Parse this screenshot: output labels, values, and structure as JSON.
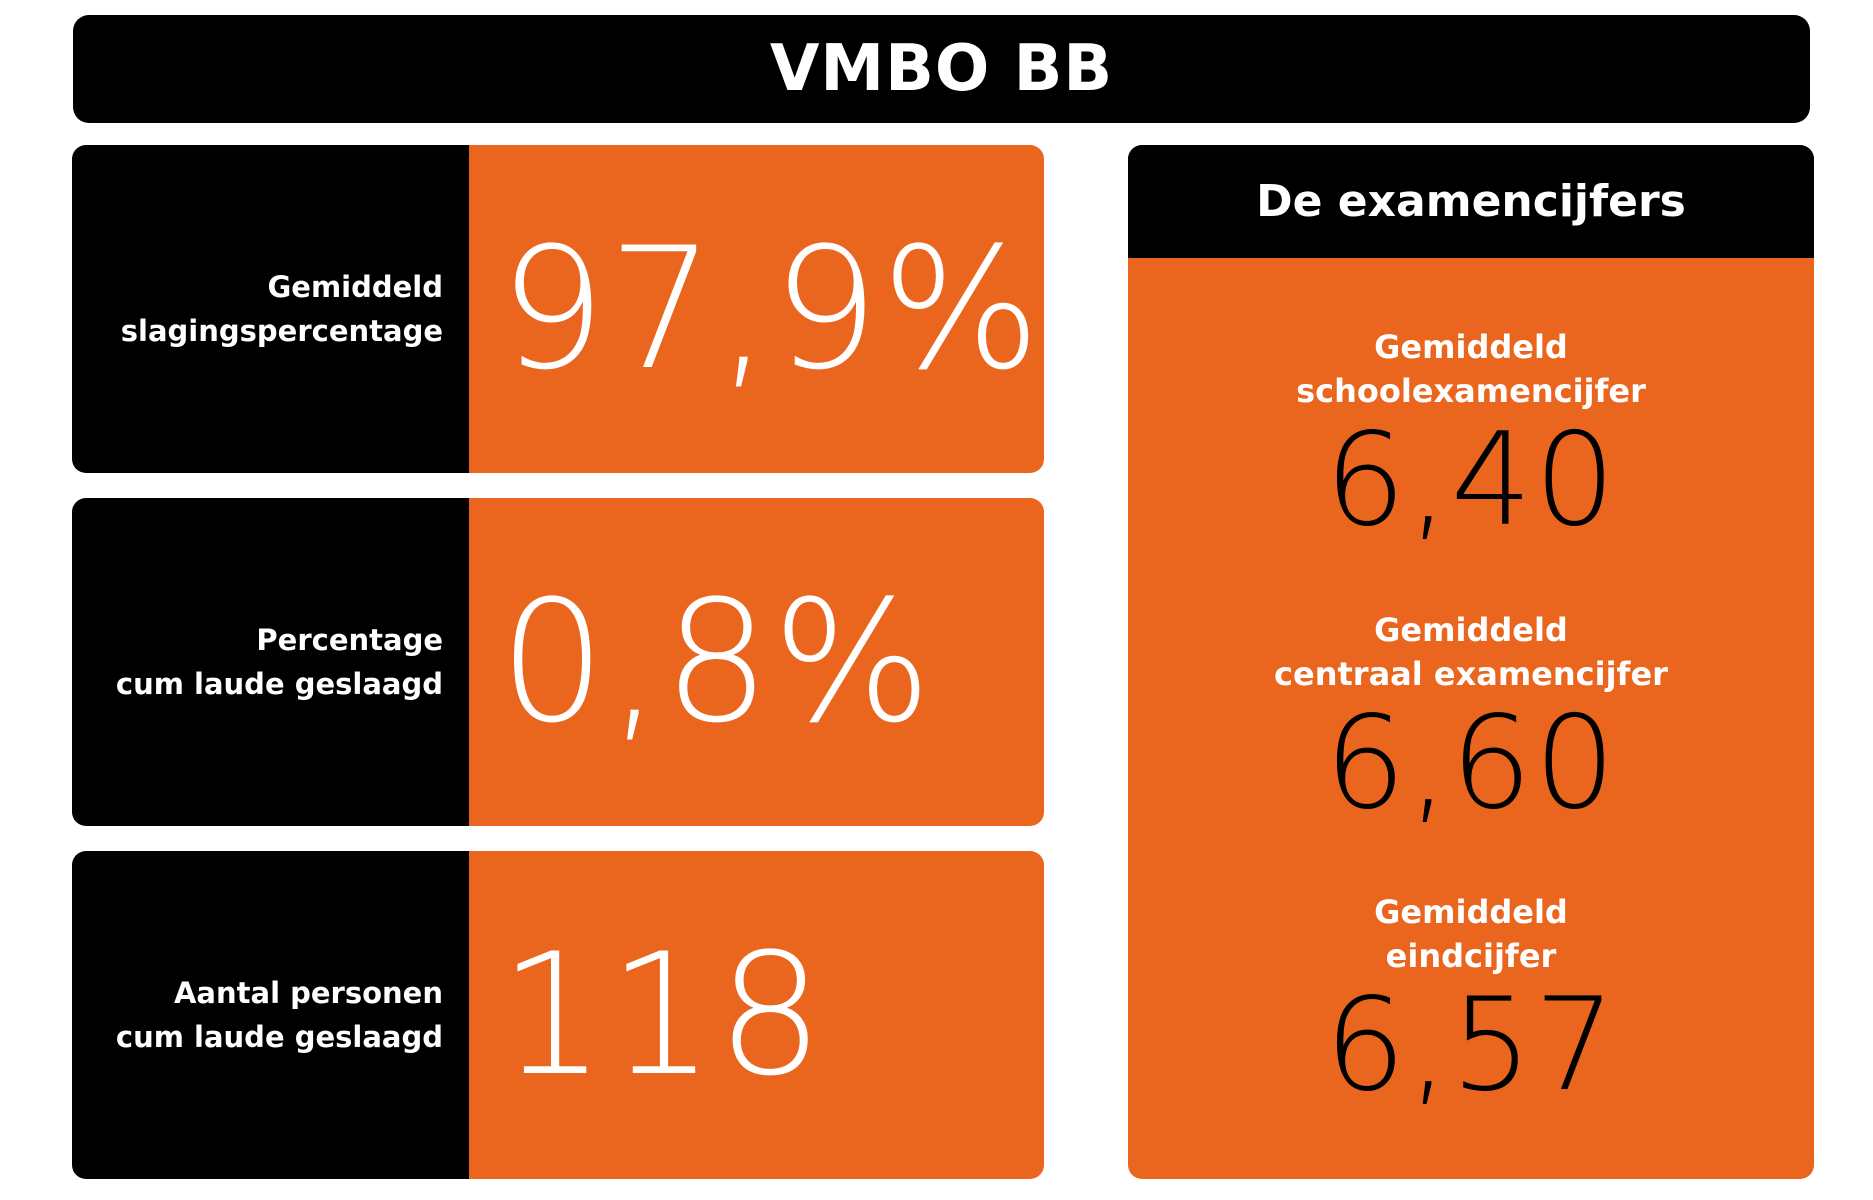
{
  "title": "VMBO BB",
  "stats": [
    {
      "label": "Gemiddeld\nslagingspercentage",
      "value": "97,9%"
    },
    {
      "label": "Percentage\ncum laude geslaagd",
      "value": "0,8%"
    },
    {
      "label": "Aantal personen\ncum laude geslaagd",
      "value": "118"
    }
  ],
  "exam": {
    "title": "De examencijfers",
    "items": [
      {
        "label": "Gemiddeld\nschoolexamencijfer",
        "value": "6,40"
      },
      {
        "label": "Gemiddeld\ncentraal examencijfer",
        "value": "6,60"
      },
      {
        "label": "Gemiddeld\neindcijfer",
        "value": "6,57"
      }
    ]
  },
  "colors": {
    "accent_orange": "#ea661f",
    "panel_black": "#000000",
    "text_white": "#ffffff"
  }
}
